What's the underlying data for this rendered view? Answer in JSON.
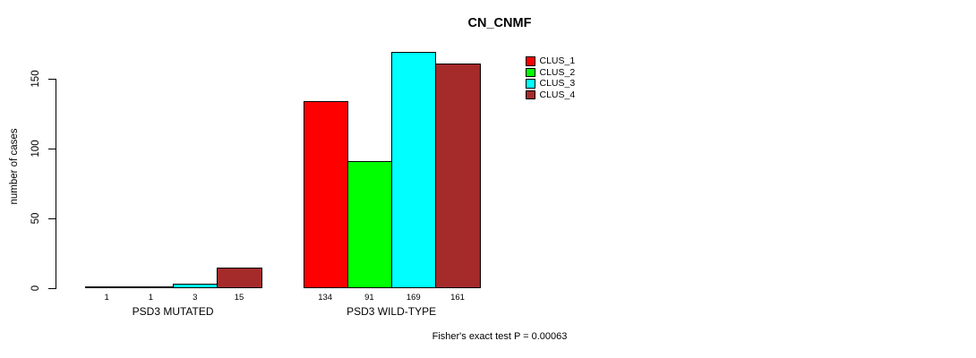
{
  "chart_data": {
    "type": "bar",
    "title": "CN_CNMF",
    "ylabel": "number of cases",
    "xlabel": "",
    "ylim": [
      0,
      150
    ],
    "yticks": [
      "0",
      "50",
      "100",
      "150"
    ],
    "grid": false,
    "legend_position": "top-right",
    "groups": [
      "PSD3 MUTATED",
      "PSD3 WILD-TYPE"
    ],
    "series": [
      {
        "name": "CLUS_1",
        "color": "#ff0000",
        "values": [
          1,
          134
        ]
      },
      {
        "name": "CLUS_2",
        "color": "#00ff00",
        "values": [
          1,
          91
        ]
      },
      {
        "name": "CLUS_3",
        "color": "#00ffff",
        "values": [
          3,
          169
        ]
      },
      {
        "name": "CLUS_4",
        "color": "#a52a2a",
        "values": [
          15,
          161
        ]
      }
    ],
    "bar_labels": [
      [
        "1",
        "1",
        "3",
        "15"
      ],
      [
        "134",
        "91",
        "169",
        "161"
      ]
    ],
    "bar_border_color": "#000000",
    "footnote": "Fisher's exact test P = 0.00063"
  }
}
